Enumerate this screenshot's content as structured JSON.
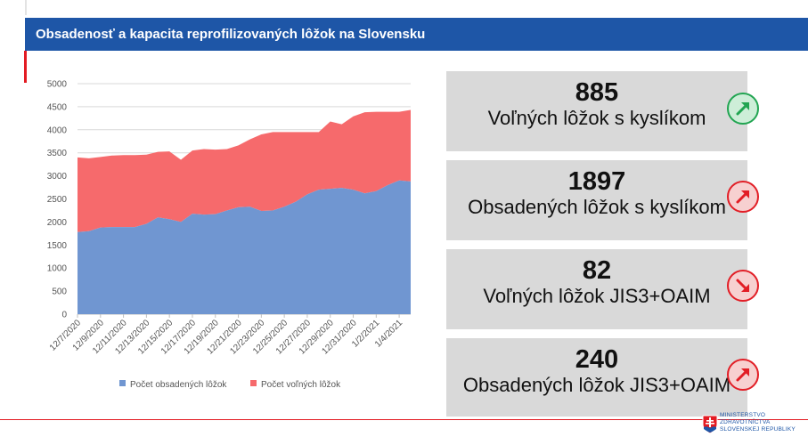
{
  "slide": {
    "title": "Obsadenosť a kapacita reprofilizovaných lôžok na Slovensku"
  },
  "colors": {
    "brand_blue": "#1e56a7",
    "accent_red": "#e31b23",
    "occupied_series": "#7096d1",
    "free_series": "#f66a6c",
    "card_bg": "#d9d9d9",
    "trend_green": "#22a552",
    "trend_red": "#e21e26"
  },
  "chart_data": {
    "type": "area",
    "stacked": true,
    "x": [
      "12/7/2020",
      "12/8/2020",
      "12/9/2020",
      "12/10/2020",
      "12/11/2020",
      "12/12/2020",
      "12/13/2020",
      "12/14/2020",
      "12/15/2020",
      "12/16/2020",
      "12/17/2020",
      "12/18/2020",
      "12/19/2020",
      "12/20/2020",
      "12/21/2020",
      "12/22/2020",
      "12/23/2020",
      "12/24/2020",
      "12/25/2020",
      "12/26/2020",
      "12/27/2020",
      "12/28/2020",
      "12/29/2020",
      "12/30/2020",
      "12/31/2020",
      "1/1/2021",
      "1/2/2021",
      "1/3/2021",
      "1/4/2021",
      "1/5/2021"
    ],
    "x_tick_labels": [
      "12/7/2020",
      "12/9/2020",
      "12/11/2020",
      "12/13/2020",
      "12/15/2020",
      "12/17/2020",
      "12/19/2020",
      "12/21/2020",
      "12/23/2020",
      "12/25/2020",
      "12/27/2020",
      "12/29/2020",
      "12/31/2020",
      "1/2/2021",
      "1/4/2021"
    ],
    "series": [
      {
        "name": "Počet obsadených lôžok",
        "color": "#7096d1",
        "values": [
          1780,
          1800,
          1880,
          1890,
          1890,
          1890,
          1960,
          2100,
          2060,
          2000,
          2180,
          2160,
          2170,
          2250,
          2320,
          2330,
          2240,
          2250,
          2330,
          2440,
          2600,
          2700,
          2720,
          2740,
          2700,
          2620,
          2670,
          2800,
          2900,
          2880
        ]
      },
      {
        "name": "Počet voľných lôžok",
        "color": "#f66a6c",
        "values": [
          1620,
          1580,
          1530,
          1550,
          1560,
          1560,
          1500,
          1420,
          1470,
          1350,
          1370,
          1420,
          1400,
          1330,
          1340,
          1460,
          1660,
          1700,
          1620,
          1510,
          1350,
          1250,
          1460,
          1380,
          1590,
          1760,
          1720,
          1590,
          1490,
          1550
        ]
      }
    ],
    "ylim": [
      0,
      5000
    ],
    "y_ticks": [
      0,
      500,
      1000,
      1500,
      2000,
      2500,
      3000,
      3500,
      4000,
      4500,
      5000
    ],
    "grid": true,
    "legend": "bottom"
  },
  "stats": [
    {
      "value": "885",
      "label": "Voľných lôžok s kyslíkom",
      "trend": "up",
      "trend_color": "green",
      "icon": "arrow-up-right-icon"
    },
    {
      "value": "1897",
      "label": "Obsadených lôžok s kyslíkom",
      "trend": "up",
      "trend_color": "red",
      "icon": "arrow-up-right-icon"
    },
    {
      "value": "82",
      "label": "Voľných lôžok JIS3+OAIM",
      "trend": "down",
      "trend_color": "red",
      "icon": "arrow-down-right-icon"
    },
    {
      "value": "240",
      "label": "Obsadených lôžok JIS3+OAIM",
      "trend": "up",
      "trend_color": "red",
      "icon": "arrow-up-right-icon"
    }
  ],
  "footer": {
    "logo_lines": [
      "MINISTERSTVO",
      "ZDRAVOTNÍCTVA",
      "SLOVENSKEJ REPUBLIKY"
    ],
    "logo_icon": "slovak-coat-of-arms-icon"
  }
}
